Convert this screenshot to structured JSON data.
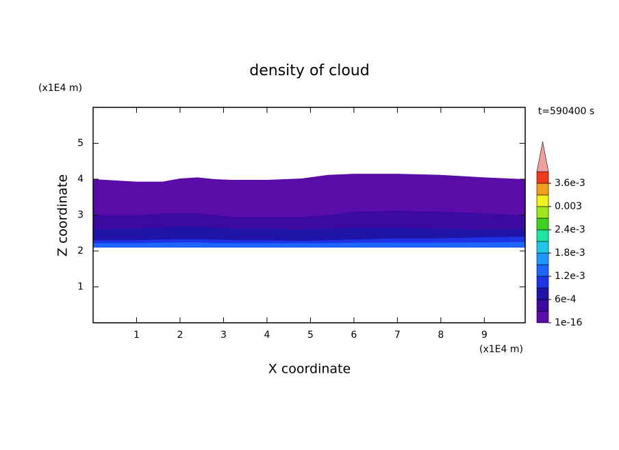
{
  "chart_data": {
    "type": "contour",
    "title": "density of cloud",
    "x_label": "X coordinate",
    "y_label": "Z coordinate",
    "x_unit": "(x1E4 m)",
    "y_unit": "(x1E4 m)",
    "time_label": "t=590400 s",
    "xlim": [
      0,
      9.94
    ],
    "ylim": [
      0,
      6
    ],
    "xticks": [
      1,
      2,
      3,
      4,
      5,
      6,
      7,
      8,
      9
    ],
    "yticks": [
      1,
      2,
      3,
      4,
      5
    ],
    "x": [
      0,
      1,
      1.6,
      2,
      2.4,
      2.8,
      3.2,
      4,
      4.8,
      5.4,
      6,
      7,
      8,
      9,
      9.94
    ],
    "base": 2.1,
    "series": [
      {
        "color": "#5a0ca8",
        "values": [
          4.0,
          3.93,
          3.93,
          4.02,
          4.05,
          4.0,
          3.98,
          3.98,
          4.02,
          4.12,
          4.15,
          4.15,
          4.12,
          4.05,
          4.0
        ]
      },
      {
        "color": "#3c0aa0",
        "values": [
          3.0,
          3.0,
          3.05,
          3.05,
          3.05,
          3.0,
          2.95,
          2.95,
          2.95,
          3.0,
          3.1,
          3.12,
          3.1,
          3.05,
          3.0
        ]
      },
      {
        "color": "#2014a8",
        "values": [
          2.6,
          2.62,
          2.65,
          2.68,
          2.68,
          2.65,
          2.62,
          2.62,
          2.6,
          2.62,
          2.65,
          2.65,
          2.62,
          2.6,
          2.6
        ]
      },
      {
        "color": "#1e32e6",
        "values": [
          2.3,
          2.3,
          2.32,
          2.33,
          2.33,
          2.32,
          2.3,
          2.3,
          2.28,
          2.3,
          2.32,
          2.35,
          2.35,
          2.38,
          2.4
        ]
      },
      {
        "color": "#1e64ff",
        "values": [
          2.22,
          2.22,
          2.23,
          2.24,
          2.24,
          2.22,
          2.22,
          2.22,
          2.22,
          2.22,
          2.23,
          2.23,
          2.23,
          2.24,
          2.25
        ]
      }
    ],
    "colorbar": {
      "levels": [
        1e-16,
        0.0003,
        0.0006,
        0.0009,
        0.0012,
        0.0015,
        0.0018,
        0.0021,
        0.0024,
        0.0027,
        0.003,
        0.0033,
        0.0036,
        0.0039
      ],
      "colors": [
        "#5a0ca8",
        "#3c0aa0",
        "#2014a8",
        "#1e32e6",
        "#1e64ff",
        "#1e96ff",
        "#1ec8e6",
        "#1ee6a0",
        "#3cd21e",
        "#a0e61e",
        "#f0f01e",
        "#f0a01e",
        "#f03c1e",
        "#f0a0a0"
      ],
      "ticks": [
        1e-16,
        {
          "value": 0.0006,
          "label": "6e-4"
        },
        {
          "value": 0.0012,
          "label": "1.2e-3"
        },
        {
          "value": 0.0018,
          "label": "1.8e-3"
        },
        {
          "value": 0.0024,
          "label": "2.4e-3"
        },
        0.003,
        {
          "value": 0.0036,
          "label": "3.6e-3"
        }
      ]
    }
  }
}
